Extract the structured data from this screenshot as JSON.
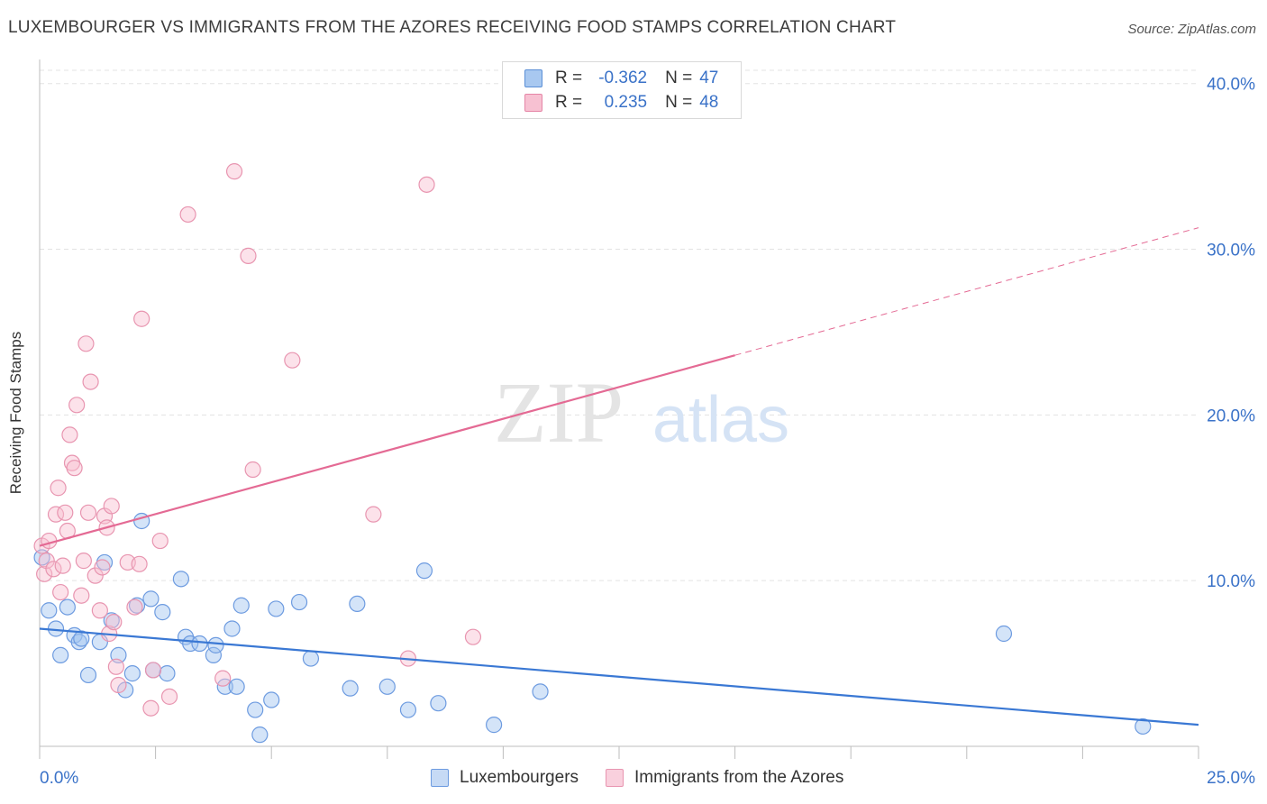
{
  "title": "LUXEMBOURGER VS IMMIGRANTS FROM THE AZORES RECEIVING FOOD STAMPS CORRELATION CHART",
  "source": "Source: ZipAtlas.com",
  "watermark": {
    "zip": "ZIP",
    "atlas": "atlas"
  },
  "legend_stats": {
    "r_label": "R =",
    "n_label": "N =",
    "rows": [
      {
        "r": "-0.362",
        "n": "47",
        "color": "#a8c8f0",
        "border": "#5b8fd6"
      },
      {
        "r": "0.235",
        "n": "48",
        "color": "#f7c1d2",
        "border": "#e585a6"
      }
    ]
  },
  "bottom_legend": [
    {
      "label": "Luxembourgers",
      "color": "#c6daf5",
      "border": "#6d9be0"
    },
    {
      "label": "Immigrants from the Azores",
      "color": "#f9d0dd",
      "border": "#e895b0"
    }
  ],
  "chart_data": {
    "type": "scatter",
    "title": "LUXEMBOURGER VS IMMIGRANTS FROM THE AZORES RECEIVING FOOD STAMPS CORRELATION CHART",
    "xlabel": "",
    "ylabel": "Receiving Food Stamps",
    "xlim": [
      0,
      25
    ],
    "ylim": [
      0,
      40.8
    ],
    "x_tick_labels": [
      "0.0%",
      "25.0%"
    ],
    "y_ticks": [
      10,
      20,
      30,
      40
    ],
    "y_tick_labels": [
      "10.0%",
      "20.0%",
      "30.0%",
      "40.0%"
    ],
    "grid": true,
    "series": [
      {
        "name": "Luxembourgers",
        "color": "#6d9be0",
        "fill": "rgba(160,195,240,0.45)",
        "points": [
          [
            0.05,
            11.4
          ],
          [
            0.2,
            8.2
          ],
          [
            0.35,
            7.1
          ],
          [
            0.45,
            5.5
          ],
          [
            0.6,
            8.4
          ],
          [
            0.75,
            6.7
          ],
          [
            0.85,
            6.3
          ],
          [
            0.9,
            6.5
          ],
          [
            1.05,
            4.3
          ],
          [
            1.3,
            6.3
          ],
          [
            1.4,
            11.1
          ],
          [
            1.55,
            7.6
          ],
          [
            1.7,
            5.5
          ],
          [
            1.85,
            3.4
          ],
          [
            2.0,
            4.4
          ],
          [
            2.1,
            8.5
          ],
          [
            2.2,
            13.6
          ],
          [
            2.4,
            8.9
          ],
          [
            2.45,
            4.6
          ],
          [
            2.65,
            8.1
          ],
          [
            2.75,
            4.4
          ],
          [
            3.05,
            10.1
          ],
          [
            3.15,
            6.6
          ],
          [
            3.25,
            6.2
          ],
          [
            3.45,
            6.2
          ],
          [
            3.75,
            5.5
          ],
          [
            3.8,
            6.1
          ],
          [
            4.0,
            3.6
          ],
          [
            4.15,
            7.1
          ],
          [
            4.25,
            3.6
          ],
          [
            4.35,
            8.5
          ],
          [
            4.65,
            2.2
          ],
          [
            4.75,
            0.7
          ],
          [
            5.0,
            2.8
          ],
          [
            5.1,
            8.3
          ],
          [
            5.6,
            8.7
          ],
          [
            5.85,
            5.3
          ],
          [
            6.7,
            3.5
          ],
          [
            6.85,
            8.6
          ],
          [
            7.5,
            3.6
          ],
          [
            7.95,
            2.2
          ],
          [
            8.3,
            10.6
          ],
          [
            8.6,
            2.6
          ],
          [
            9.8,
            1.3
          ],
          [
            10.8,
            3.3
          ],
          [
            20.8,
            6.8
          ],
          [
            23.8,
            1.2
          ]
        ]
      },
      {
        "name": "Immigrants from the Azores",
        "color": "#e895b0",
        "fill": "rgba(248,190,208,0.45)",
        "points": [
          [
            0.05,
            12.1
          ],
          [
            0.1,
            10.4
          ],
          [
            0.15,
            11.2
          ],
          [
            0.2,
            12.4
          ],
          [
            0.3,
            10.7
          ],
          [
            0.35,
            14.0
          ],
          [
            0.4,
            15.6
          ],
          [
            0.45,
            9.3
          ],
          [
            0.5,
            10.9
          ],
          [
            0.55,
            14.1
          ],
          [
            0.6,
            13.0
          ],
          [
            0.65,
            18.8
          ],
          [
            0.7,
            17.1
          ],
          [
            0.75,
            16.8
          ],
          [
            0.8,
            20.6
          ],
          [
            0.9,
            9.1
          ],
          [
            0.95,
            11.2
          ],
          [
            1.0,
            24.3
          ],
          [
            1.05,
            14.1
          ],
          [
            1.1,
            22.0
          ],
          [
            1.2,
            10.3
          ],
          [
            1.3,
            8.2
          ],
          [
            1.35,
            10.8
          ],
          [
            1.4,
            13.9
          ],
          [
            1.45,
            13.2
          ],
          [
            1.5,
            6.8
          ],
          [
            1.55,
            14.5
          ],
          [
            1.6,
            7.5
          ],
          [
            1.65,
            4.8
          ],
          [
            1.7,
            3.7
          ],
          [
            1.9,
            11.1
          ],
          [
            2.05,
            8.4
          ],
          [
            2.15,
            11.0
          ],
          [
            2.2,
            25.8
          ],
          [
            2.4,
            2.3
          ],
          [
            2.45,
            4.6
          ],
          [
            2.6,
            12.4
          ],
          [
            2.8,
            3.0
          ],
          [
            3.2,
            32.1
          ],
          [
            3.95,
            4.1
          ],
          [
            4.2,
            34.7
          ],
          [
            4.5,
            29.6
          ],
          [
            4.6,
            16.7
          ],
          [
            5.45,
            23.3
          ],
          [
            7.2,
            14.0
          ],
          [
            7.95,
            5.3
          ],
          [
            8.35,
            33.9
          ],
          [
            9.35,
            6.6
          ]
        ]
      }
    ],
    "trendlines": [
      {
        "series": "Luxembourgers",
        "x": [
          0,
          25
        ],
        "y": [
          7.1,
          1.3
        ],
        "style": "solid"
      },
      {
        "series": "Immigrants from the Azores",
        "x": [
          0,
          15
        ],
        "y": [
          12.1,
          23.6
        ],
        "style": "solid"
      },
      {
        "series": "Immigrants from the Azores",
        "x": [
          15,
          25
        ],
        "y": [
          23.6,
          31.3
        ],
        "style": "dashed"
      }
    ]
  }
}
